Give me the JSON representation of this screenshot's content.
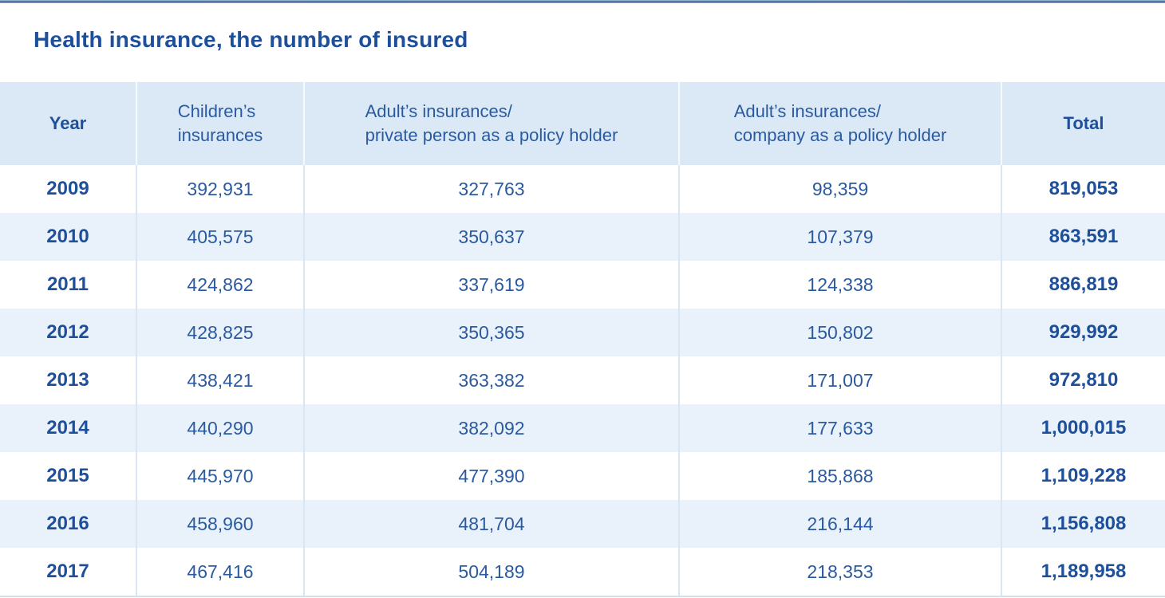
{
  "page_title": "Health insurance, the number of insured",
  "colors": {
    "accent_text_dark_blue": "#1d4f9b",
    "body_text_blue": "#2a5aa0",
    "header_bg": "#dbe9f6",
    "alt_row_bg": "#e9f2fb",
    "top_bar_blue": "#49709f",
    "divider_body": "#d9e7f4",
    "divider_header": "#f4f9fd",
    "table_bottom_border": "#cfe0ef"
  },
  "table": {
    "columns": [
      {
        "id": "year",
        "lines": [
          "Year"
        ],
        "bold": true
      },
      {
        "id": "children",
        "lines": [
          "Children’s",
          "insurances"
        ],
        "bold": false
      },
      {
        "id": "adult_private",
        "lines": [
          "Adult’s insurances/",
          "private person as a policy holder"
        ],
        "bold": false
      },
      {
        "id": "adult_company",
        "lines": [
          "Adult’s insurances/",
          "company as a policy holder"
        ],
        "bold": false
      },
      {
        "id": "total",
        "lines": [
          "Total"
        ],
        "bold": true
      }
    ],
    "rows": [
      [
        "2009",
        "392,931",
        "327,763",
        "98,359",
        "819,053"
      ],
      [
        "2010",
        "405,575",
        "350,637",
        "107,379",
        "863,591"
      ],
      [
        "2011",
        "424,862",
        "337,619",
        "124,338",
        "886,819"
      ],
      [
        "2012",
        "428,825",
        "350,365",
        "150,802",
        "929,992"
      ],
      [
        "2013",
        "438,421",
        "363,382",
        "171,007",
        "972,810"
      ],
      [
        "2014",
        "440,290",
        "382,092",
        "177,633",
        "1,000,015"
      ],
      [
        "2015",
        "445,970",
        "477,390",
        "185,868",
        "1,109,228"
      ],
      [
        "2016",
        "458,960",
        "481,704",
        "216,144",
        "1,156,808"
      ],
      [
        "2017",
        "467,416",
        "504,189",
        "218,353",
        "1,189,958"
      ]
    ]
  },
  "chart_data": {
    "type": "table",
    "title": "Health insurance, the number of insured",
    "columns": [
      "Year",
      "Children’s insurances",
      "Adult’s insurances/ private person as a policy holder",
      "Adult’s insurances/ company as a policy holder",
      "Total"
    ],
    "rows": [
      [
        "2009",
        "392,931",
        "327,763",
        "98,359",
        "819,053"
      ],
      [
        "2010",
        "405,575",
        "350,637",
        "107,379",
        "863,591"
      ],
      [
        "2011",
        "424,862",
        "337,619",
        "124,338",
        "886,819"
      ],
      [
        "2012",
        "428,825",
        "350,365",
        "150,802",
        "929,992"
      ],
      [
        "2013",
        "438,421",
        "363,382",
        "171,007",
        "972,810"
      ],
      [
        "2014",
        "440,290",
        "382,092",
        "177,633",
        "1,000,015"
      ],
      [
        "2015",
        "445,970",
        "477,390",
        "185,868",
        "1,109,228"
      ],
      [
        "2016",
        "458,960",
        "481,704",
        "216,144",
        "1,156,808"
      ],
      [
        "2017",
        "467,416",
        "504,189",
        "218,353",
        "1,189,958"
      ]
    ]
  }
}
